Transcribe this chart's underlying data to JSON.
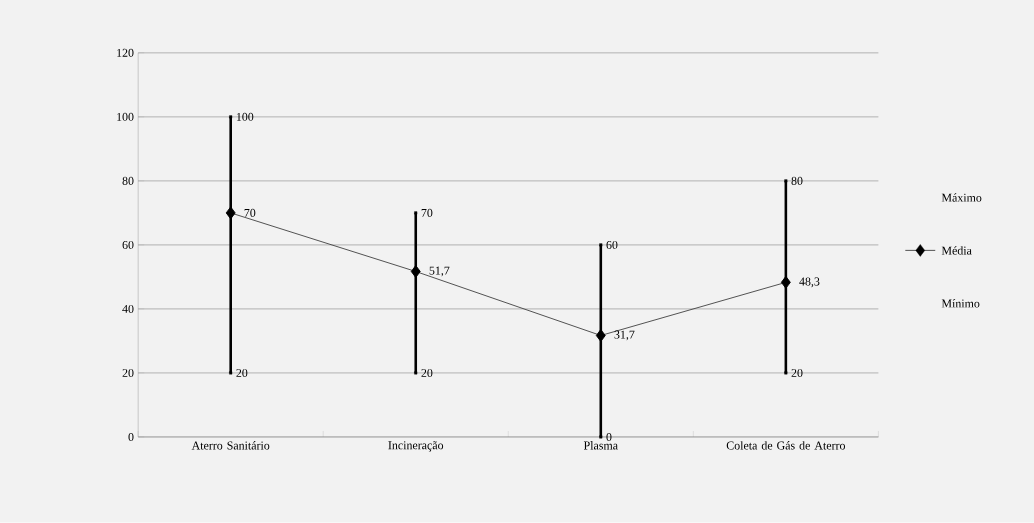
{
  "chart_data": {
    "type": "line",
    "categories": [
      "Aterro Sanitário",
      "Incineração",
      "Plasma",
      "Coleta de Gás de Aterro"
    ],
    "ylim": [
      0,
      120
    ],
    "yticks": [
      0,
      20,
      40,
      60,
      80,
      100,
      120
    ],
    "grid": "y",
    "legend": "right",
    "series": [
      {
        "name": "Máximo",
        "type": "scatter",
        "marker": "square",
        "color": "#000000",
        "values": [
          100,
          70,
          60,
          80
        ],
        "value_labels": [
          "100",
          "70",
          "60",
          "80"
        ]
      },
      {
        "name": "Média",
        "marker": "diamond",
        "color": "#000000",
        "values": [
          70,
          51.7,
          31.7,
          48.3
        ],
        "errors": [
          [
            20,
            100
          ],
          [
            20,
            70
          ],
          [
            0,
            60
          ],
          [
            20,
            80
          ]
        ],
        "value_labels": [
          "70",
          "51,7",
          "31,7",
          "48,3"
        ]
      },
      {
        "name": "Mínimo",
        "type": "scatter",
        "marker": "square",
        "color": "#000000",
        "values": [
          20,
          20,
          0,
          20
        ],
        "value_labels": [
          "20",
          "20",
          "0",
          "20"
        ]
      }
    ]
  }
}
